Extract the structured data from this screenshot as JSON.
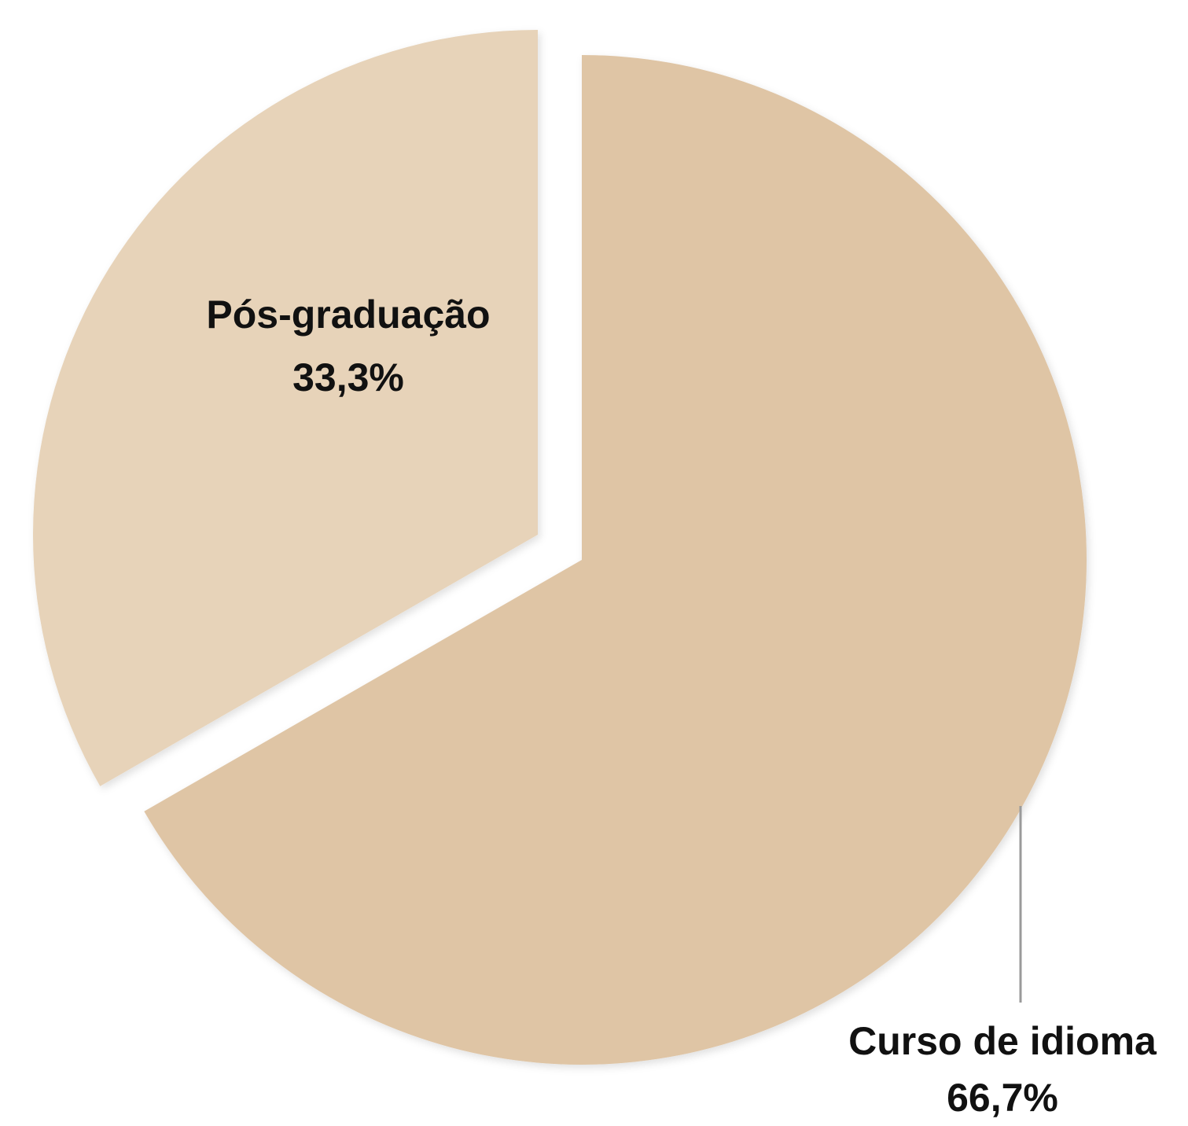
{
  "chart_data": {
    "type": "pie",
    "categories": [
      "Curso de idioma",
      "Pós-graduação"
    ],
    "values": [
      66.7,
      33.3
    ],
    "value_labels": [
      "66,7%",
      "33,3%"
    ],
    "colors": [
      "#dfc5a5",
      "#e7d3b9"
    ]
  }
}
